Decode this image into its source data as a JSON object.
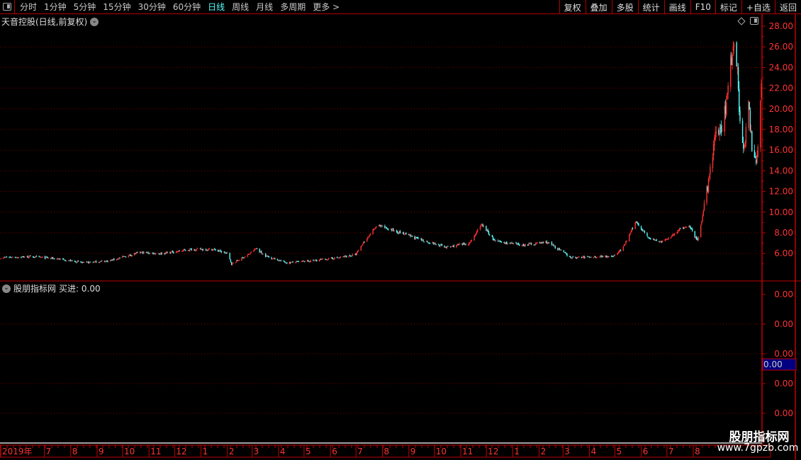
{
  "toolbar": {
    "periods": [
      "分时",
      "1分钟",
      "5分钟",
      "15分钟",
      "30分钟",
      "60分钟",
      "日线",
      "周线",
      "月线",
      "多周期",
      "更多 >"
    ],
    "active_period": "日线",
    "right_buttons": [
      "复权",
      "叠加",
      "多股",
      "统计",
      "画线",
      "F10",
      "标记",
      "+自选",
      "返回"
    ]
  },
  "main_panel": {
    "title": "天音控股(日线,前复权)"
  },
  "indicator_panel": {
    "name": "股朋指标网",
    "value_label": "买进: 0.00",
    "axis_labels": [
      "0.00",
      "0.00",
      "0.00",
      "0.00",
      "0.00"
    ],
    "cursor_value": "0.00"
  },
  "watermark": {
    "line1": "股朋指标网",
    "line2": "www.7gpzb.com"
  },
  "colors": {
    "up": "#ff3232",
    "down": "#54fcfc",
    "axis": "#c00000",
    "price_label": "#ff3232",
    "active": "#54fcfc",
    "cursor_box": "#000080"
  },
  "chart_data": {
    "type": "candlestick",
    "ylim": [
      4.5,
      28.5
    ],
    "y_ticks": [
      "28.00",
      "26.00",
      "24.00",
      "22.00",
      "20.00",
      "18.00",
      "16.00",
      "14.00",
      "12.00",
      "10.00",
      "8.00",
      "6.00"
    ],
    "grid": true,
    "x_ticks": [
      {
        "label": "2019年",
        "date": "2019-06-01"
      },
      {
        "label": "7",
        "date": "2019-07-01"
      },
      {
        "label": "8",
        "date": "2019-08-01"
      },
      {
        "label": "9",
        "date": "2019-09-01"
      },
      {
        "label": "10",
        "date": "2019-10-01"
      },
      {
        "label": "11",
        "date": "2019-11-01"
      },
      {
        "label": "12",
        "date": "2019-12-01"
      },
      {
        "label": "1",
        "date": "2020-01-01"
      },
      {
        "label": "2",
        "date": "2020-02-01"
      },
      {
        "label": "3",
        "date": "2020-03-01"
      },
      {
        "label": "4",
        "date": "2020-04-01"
      },
      {
        "label": "5",
        "date": "2020-05-01"
      },
      {
        "label": "6",
        "date": "2020-06-01"
      },
      {
        "label": "7",
        "date": "2020-07-01"
      },
      {
        "label": "8",
        "date": "2020-08-01"
      },
      {
        "label": "9",
        "date": "2020-09-01"
      },
      {
        "label": "10",
        "date": "2020-10-01"
      },
      {
        "label": "11",
        "date": "2020-11-01"
      },
      {
        "label": "12",
        "date": "2020-12-01"
      },
      {
        "label": "1",
        "date": "2021-01-01"
      },
      {
        "label": "2",
        "date": "2021-02-01"
      },
      {
        "label": "3",
        "date": "2021-03-01"
      },
      {
        "label": "4",
        "date": "2021-04-01"
      },
      {
        "label": "5",
        "date": "2021-05-01"
      },
      {
        "label": "6",
        "date": "2021-06-01"
      },
      {
        "label": "7",
        "date": "2021-07-01"
      },
      {
        "label": "8",
        "date": "2021-08-01"
      }
    ],
    "close_trend": [
      [
        "2019-05-10",
        5.6
      ],
      [
        "2019-06-15",
        5.7
      ],
      [
        "2019-07-15",
        5.5
      ],
      [
        "2019-08-15",
        5.1
      ],
      [
        "2019-09-15",
        5.3
      ],
      [
        "2019-10-20",
        6.1
      ],
      [
        "2019-11-15",
        6.0
      ],
      [
        "2019-12-20",
        6.4
      ],
      [
        "2020-01-15",
        6.4
      ],
      [
        "2020-01-31",
        6.0
      ],
      [
        "2020-02-05",
        5.0
      ],
      [
        "2020-02-25",
        5.9
      ],
      [
        "2020-03-05",
        6.5
      ],
      [
        "2020-03-15",
        5.8
      ],
      [
        "2020-04-10",
        5.1
      ],
      [
        "2020-05-10",
        5.3
      ],
      [
        "2020-06-10",
        5.6
      ],
      [
        "2020-06-30",
        5.9
      ],
      [
        "2020-07-10",
        7.2
      ],
      [
        "2020-07-25",
        8.7
      ],
      [
        "2020-08-15",
        8.2
      ],
      [
        "2020-09-15",
        7.3
      ],
      [
        "2020-10-15",
        6.6
      ],
      [
        "2020-11-10",
        7.0
      ],
      [
        "2020-11-25",
        8.8
      ],
      [
        "2020-12-10",
        7.2
      ],
      [
        "2021-01-10",
        6.8
      ],
      [
        "2021-02-10",
        7.1
      ],
      [
        "2021-02-25",
        6.3
      ],
      [
        "2021-03-10",
        5.6
      ],
      [
        "2021-04-10",
        5.7
      ],
      [
        "2021-04-30",
        5.8
      ],
      [
        "2021-05-10",
        6.6
      ],
      [
        "2021-05-25",
        9.1
      ],
      [
        "2021-06-10",
        7.4
      ],
      [
        "2021-06-25",
        7.1
      ],
      [
        "2021-07-10",
        8.0
      ],
      [
        "2021-07-25",
        8.8
      ],
      [
        "2021-08-05",
        7.2
      ],
      [
        "2021-08-12",
        10.0
      ],
      [
        "2021-08-18",
        13.0
      ],
      [
        "2021-08-25",
        17.0
      ],
      [
        "2021-09-01",
        18.0
      ],
      [
        "2021-09-08",
        20.5
      ],
      [
        "2021-09-13",
        24.5
      ],
      [
        "2021-09-18",
        27.5
      ],
      [
        "2021-09-24",
        19.0
      ],
      [
        "2021-09-29",
        16.2
      ],
      [
        "2021-10-04",
        20.0
      ],
      [
        "2021-10-08",
        16.5
      ],
      [
        "2021-10-13",
        15.0
      ],
      [
        "2021-10-16",
        17.5
      ],
      [
        "2021-10-19",
        22.3
      ]
    ]
  }
}
